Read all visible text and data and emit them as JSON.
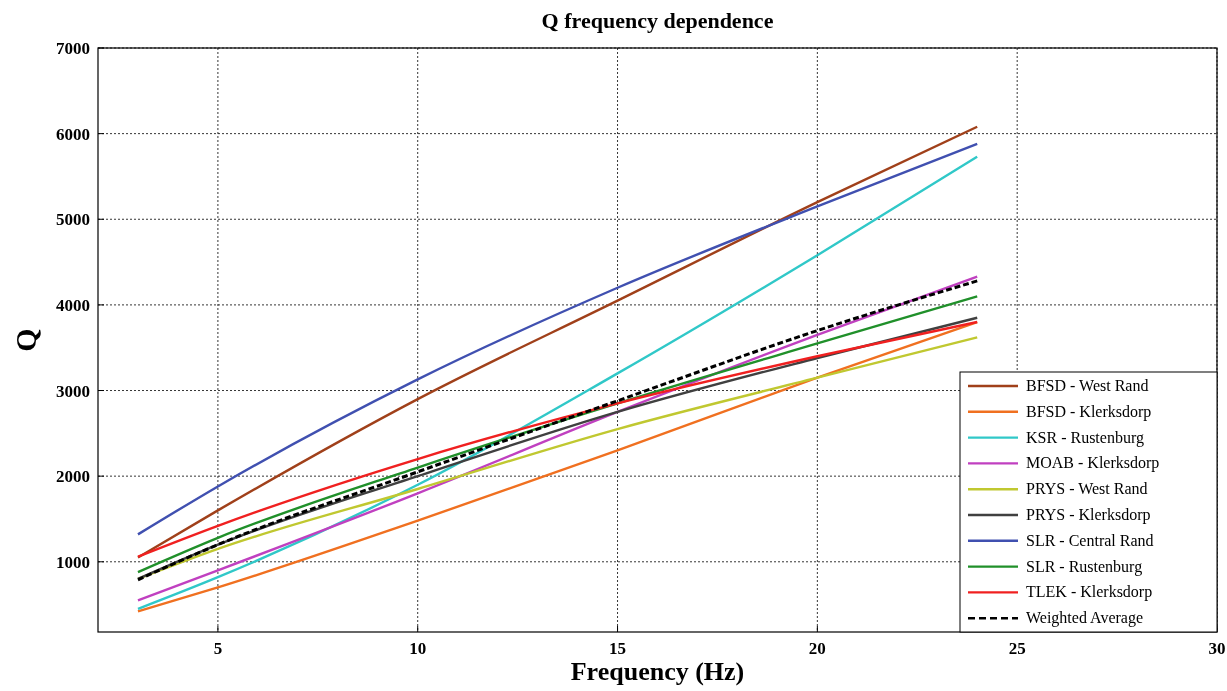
{
  "chart_data": {
    "type": "line",
    "title": "Q frequency dependence",
    "xlabel": "Frequency (Hz)",
    "ylabel": "Q",
    "xlim": [
      2,
      30
    ],
    "xticks": [
      5,
      10,
      15,
      20,
      25,
      30
    ],
    "ylim": [
      180,
      7000
    ],
    "yticks": [
      1000,
      2000,
      3000,
      4000,
      5000,
      6000,
      7000
    ],
    "grid": true,
    "legend": "bottom right",
    "marker": "none",
    "line_style": "solid",
    "x": [
      3,
      5,
      10,
      15,
      20,
      24
    ],
    "series": [
      {
        "name": "BFSD - West Rand",
        "color": "#a0401a",
        "values": [
          1050,
          1600,
          2900,
          4050,
          5200,
          6080
        ]
      },
      {
        "name": "BFSD - Klerksdorp",
        "color": "#f07020",
        "values": [
          420,
          700,
          1480,
          2300,
          3150,
          3800
        ]
      },
      {
        "name": "KSR - Rustenburg",
        "color": "#30c8c8",
        "values": [
          450,
          820,
          1900,
          3200,
          4580,
          5730
        ]
      },
      {
        "name": "MOAB - Klerksdorp",
        "color": "#c040c0",
        "values": [
          550,
          900,
          1800,
          2750,
          3650,
          4330
        ]
      },
      {
        "name": "PRYS - West Rand",
        "color": "#c0c830",
        "values": [
          800,
          1150,
          1850,
          2550,
          3150,
          3620
        ]
      },
      {
        "name": "PRYS - Klerksdorp",
        "color": "#404040",
        "values": [
          800,
          1200,
          2000,
          2750,
          3380,
          3850
        ]
      },
      {
        "name": "SLR - Central Rand",
        "color": "#4050b0",
        "values": [
          1320,
          1880,
          3130,
          4200,
          5150,
          5880
        ]
      },
      {
        "name": "SLR - Rustenburg",
        "color": "#20902a",
        "values": [
          880,
          1280,
          2100,
          2850,
          3550,
          4100
        ]
      },
      {
        "name": "TLEK - Klerksdorp",
        "color": "#f02020",
        "values": [
          1060,
          1420,
          2200,
          2850,
          3400,
          3800
        ]
      },
      {
        "name": "Weighted Average",
        "color": "#000000",
        "line_style": "dashed",
        "values": [
          790,
          1200,
          2050,
          2880,
          3700,
          4280
        ]
      }
    ]
  }
}
